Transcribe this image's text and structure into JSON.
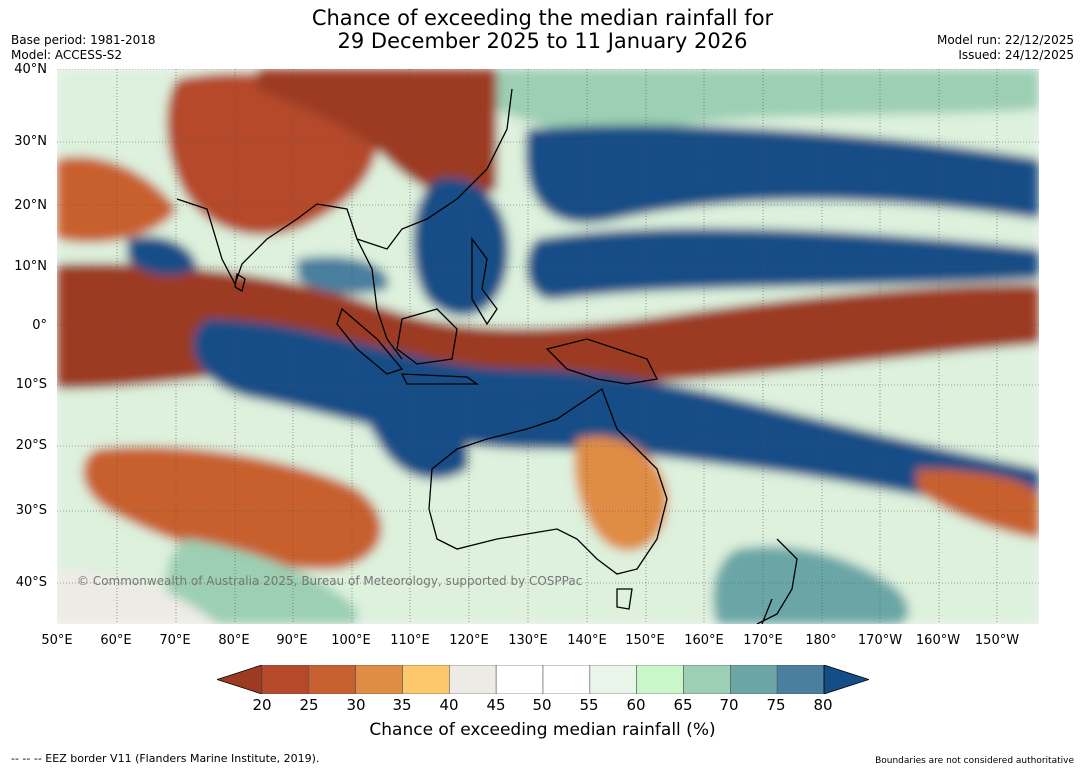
{
  "title_line1": "Chance of exceeding the median rainfall for",
  "title_line2": "29 December 2025 to 11 January 2026",
  "base_period": "Base period: 1981-2018",
  "model": "Model: ACCESS-S2",
  "model_run": "Model run: 22/12/2025",
  "issued": "Issued: 24/12/2025",
  "credit": "© Commonwealth of Australia 2025, Bureau of Meteorology, supported by COSPPac",
  "eez_note": "--  --  -- EEZ border V11 (Flanders Marine Institute, 2019).",
  "boundaries_note": "Boundaries are not considered authoritative",
  "lat_labels": [
    "40°N",
    "30°N",
    "20°N",
    "10°N",
    "0°",
    "10°S",
    "20°S",
    "30°S",
    "40°S"
  ],
  "lon_labels": [
    "50°E",
    "60°E",
    "70°E",
    "80°E",
    "90°E",
    "100°E",
    "110°E",
    "120°E",
    "130°E",
    "140°E",
    "150°E",
    "160°E",
    "170°E",
    "180°",
    "170°W",
    "160°W",
    "150°W"
  ],
  "colorbar": {
    "title": "Chance of exceeding median rainfall (%)",
    "ticks": [
      "20",
      "25",
      "30",
      "35",
      "40",
      "45",
      "50",
      "55",
      "60",
      "65",
      "70",
      "75",
      "80"
    ],
    "colors": [
      "#9c3a22",
      "#b5492a",
      "#c8602f",
      "#df8c45",
      "#fdc76c",
      "#edebe5",
      "#ffffff",
      "#ffffff",
      "#e8f5e8",
      "#c9f7c9",
      "#9ccfb4",
      "#6aa6a6",
      "#4a7f9f",
      "#154e86"
    ]
  }
}
